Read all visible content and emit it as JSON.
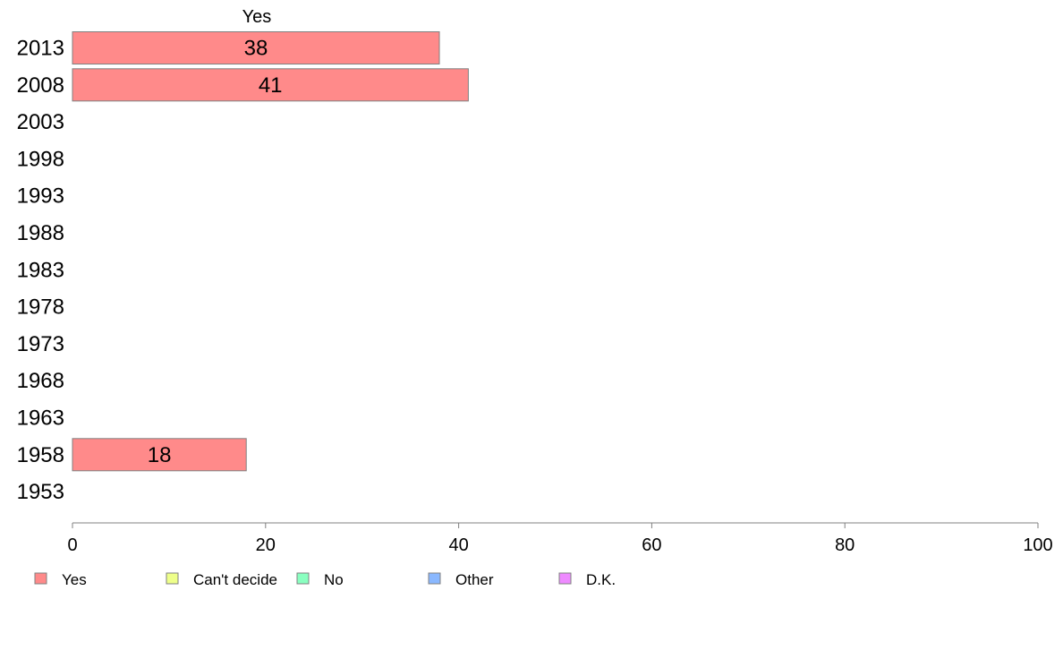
{
  "chart_data": {
    "type": "bar",
    "orientation": "horizontal",
    "stacked": true,
    "categories": [
      "2013",
      "2008",
      "2003",
      "1998",
      "1993",
      "1988",
      "1983",
      "1978",
      "1973",
      "1968",
      "1963",
      "1958",
      "1953"
    ],
    "series": [
      {
        "name": "Yes",
        "color": "#ff8a8a",
        "values": [
          38,
          41,
          null,
          null,
          null,
          null,
          null,
          null,
          null,
          null,
          null,
          18,
          null
        ]
      },
      {
        "name": "Can't decide",
        "color": "#eeff8a",
        "values": [
          null,
          null,
          null,
          null,
          null,
          null,
          null,
          null,
          null,
          null,
          null,
          null,
          null
        ]
      },
      {
        "name": "No",
        "color": "#8affc0",
        "values": [
          null,
          null,
          null,
          null,
          null,
          null,
          null,
          null,
          null,
          null,
          null,
          null,
          null
        ]
      },
      {
        "name": "Other",
        "color": "#8ab8ff",
        "values": [
          null,
          null,
          null,
          null,
          null,
          null,
          null,
          null,
          null,
          null,
          null,
          null,
          null
        ]
      },
      {
        "name": "D.K.",
        "color": "#ee8aff",
        "values": [
          null,
          null,
          null,
          null,
          null,
          null,
          null,
          null,
          null,
          null,
          null,
          null,
          null
        ]
      }
    ],
    "header_label": "Yes",
    "xlim": [
      0,
      100
    ],
    "xticks": [
      0,
      20,
      40,
      60,
      80,
      100
    ],
    "grid": false,
    "legend_position": "bottom"
  }
}
